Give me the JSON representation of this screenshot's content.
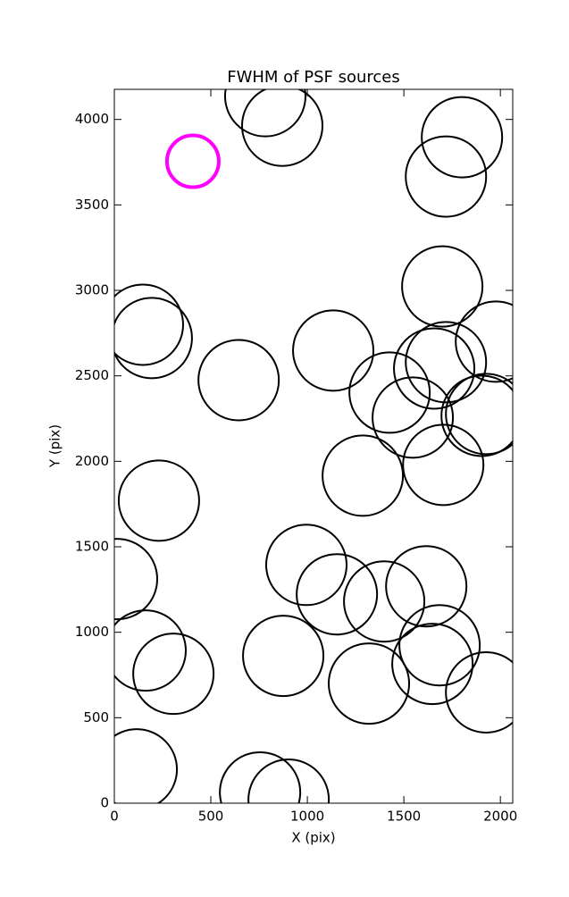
{
  "chart_data": {
    "type": "scatter",
    "title": "FWHM of PSF sources",
    "x_label": "X (pix)",
    "y_label": "Y (pix)",
    "xlim": [
      0,
      2064
    ],
    "ylim": [
      0,
      4176
    ],
    "xticks": [
      0,
      500,
      1000,
      1500,
      2000
    ],
    "yticks": [
      0,
      500,
      1000,
      1500,
      2000,
      2500,
      3000,
      3500,
      4000
    ],
    "series": [
      {
        "color": "#000000",
        "x": [
          782,
          870,
          1801,
          1718,
          1699,
          148,
          194,
          644,
          1134,
          1977,
          1718,
          1657,
          1426,
          1546,
          1926,
          1903,
          1287,
          1704,
          231,
          14,
          995,
          1153,
          1398,
          1616,
          162,
          306,
          875,
          1319,
          1685,
          1648,
          1926,
          116,
          755,
          903
        ],
        "values": [
          4136,
          3963,
          3896,
          3666,
          3023,
          2799,
          2721,
          2475,
          2648,
          2700,
          2580,
          2543,
          2402,
          2256,
          2277,
          2266,
          1916,
          1979,
          1770,
          1311,
          1394,
          1222,
          1180,
          1269,
          893,
          757,
          862,
          700,
          924,
          815,
          648,
          198,
          63,
          21
        ]
      },
      {
        "color": "#ff00ff",
        "x": [
          407
        ],
        "values": [
          3755
        ]
      }
    ]
  }
}
